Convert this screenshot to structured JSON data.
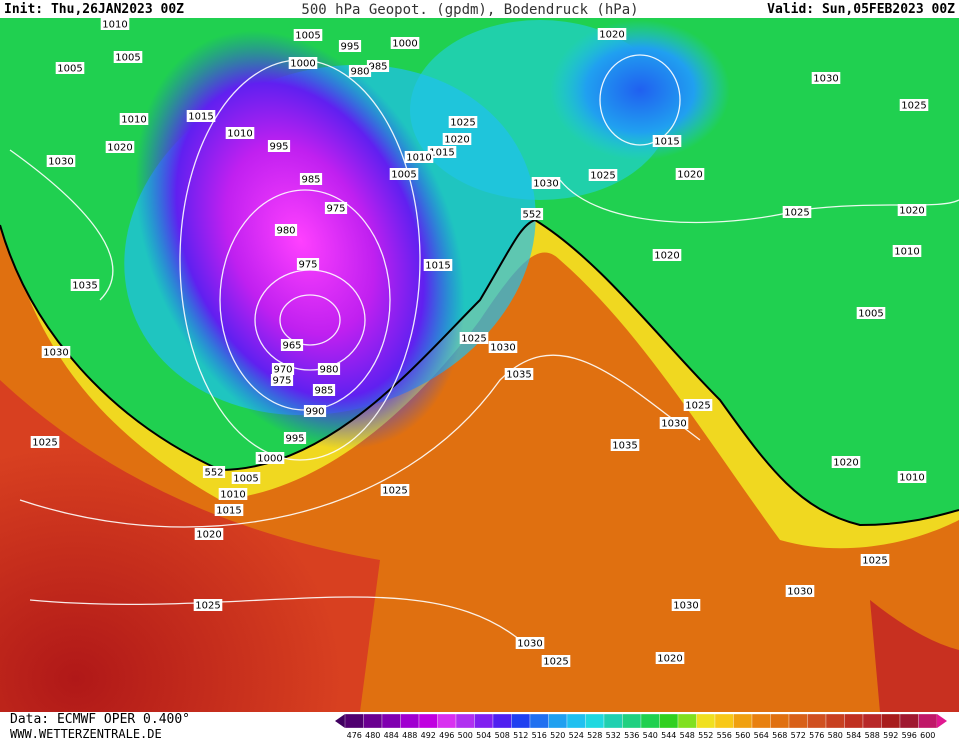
{
  "header": {
    "init": "Init: Thu,26JAN2023 00Z",
    "title": "500 hPa Geopot. (gpdm), Bodendruck (hPa)",
    "valid": "Valid: Sun,05FEB2023 00Z"
  },
  "footer": {
    "data": "Data: ECMWF OPER 0.400°",
    "website": "WWW.WETTERZENTRALE.DE"
  },
  "colorbar": {
    "labels": [
      476,
      480,
      484,
      488,
      492,
      496,
      500,
      504,
      508,
      512,
      516,
      520,
      524,
      528,
      532,
      536,
      540,
      544,
      548,
      552,
      556,
      560,
      564,
      568,
      572,
      576,
      580,
      584,
      588,
      592,
      596,
      600
    ]
  },
  "contour_labels": [
    "1010",
    "1005",
    "995",
    "1000",
    "1005",
    "1005",
    "1000",
    "985",
    "980",
    "1020",
    "1030",
    "1025",
    "1010",
    "1015",
    "1010",
    "995",
    "1025",
    "1020",
    "1015",
    "1010",
    "1020",
    "1030",
    "985",
    "1005",
    "1030",
    "1025",
    "1015",
    "1020",
    "975",
    "552",
    "1025",
    "1020",
    "980",
    "975",
    "1015",
    "1020",
    "1010",
    "1035",
    "1005",
    "1030",
    "1025",
    "1030",
    "965",
    "970",
    "975",
    "980",
    "985",
    "1035",
    "990",
    "1025",
    "1030",
    "995",
    "1025",
    "1035",
    "1000",
    "552",
    "1005",
    "1020",
    "1010",
    "1025",
    "1010",
    "1015",
    "1020",
    "1025",
    "1025",
    "1030",
    "1030",
    "1030",
    "1020",
    "1025"
  ]
}
